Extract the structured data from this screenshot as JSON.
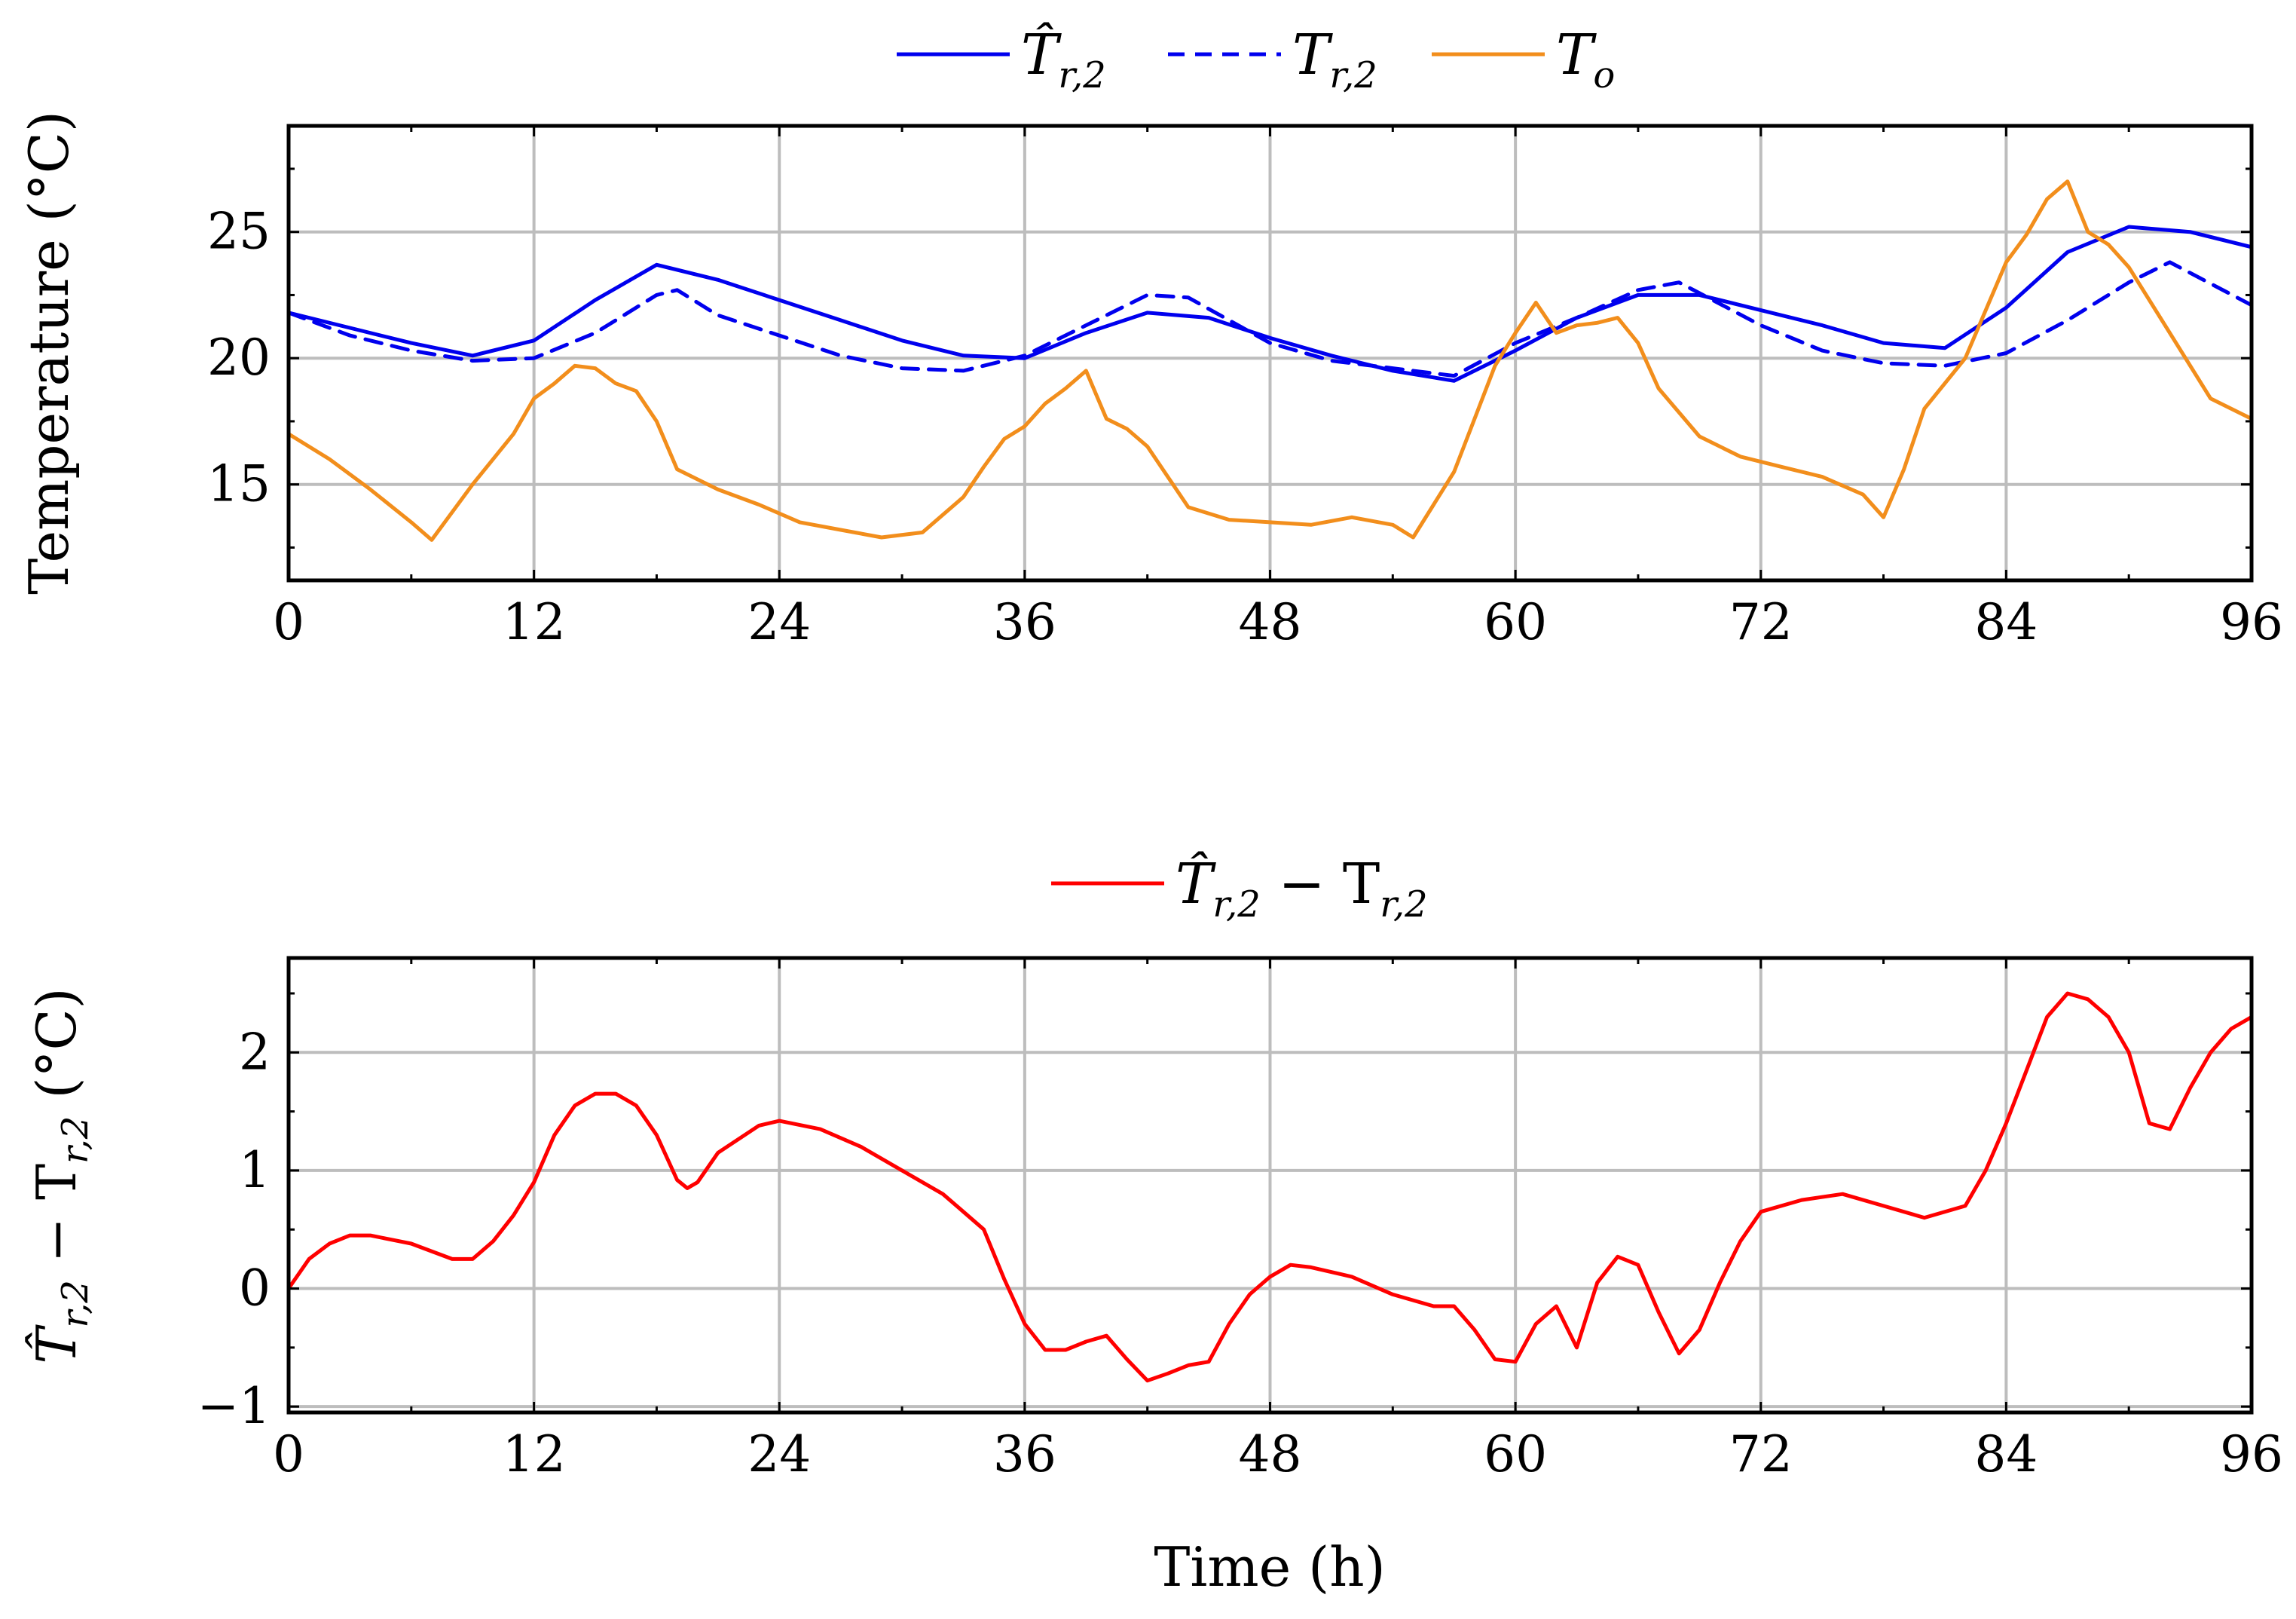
{
  "chart_data": [
    {
      "type": "line",
      "title": "",
      "xlabel": "",
      "ylabel": "Temperature (°C)",
      "xlim": [
        0,
        96
      ],
      "ylim": [
        11.2,
        29.2
      ],
      "xticks": [
        0,
        12,
        24,
        36,
        48,
        60,
        72,
        84,
        96
      ],
      "yticks": [
        15,
        20,
        25
      ],
      "xtick_labels": [
        "0",
        "12",
        "24",
        "36",
        "48",
        "60",
        "72",
        "84",
        "96"
      ],
      "ytick_labels": [
        "15",
        "20",
        "25"
      ],
      "grid": true,
      "legend_position": "top-center-outside",
      "series": [
        {
          "name": "T̂r,2",
          "legend_main": "T̂",
          "legend_sub": "r,2",
          "color": "#0000ee",
          "style": "solid",
          "x": [
            0,
            3,
            6,
            9,
            12,
            15,
            18,
            21,
            24,
            27,
            30,
            33,
            36,
            39,
            42,
            45,
            48,
            51,
            54,
            57,
            60,
            63,
            66,
            69,
            72,
            75,
            78,
            81,
            84,
            87,
            90,
            93,
            96
          ],
          "y": [
            21.8,
            21.2,
            20.6,
            20.1,
            20.7,
            22.3,
            23.7,
            23.1,
            22.3,
            21.5,
            20.7,
            20.1,
            20.0,
            21.0,
            21.8,
            21.6,
            20.8,
            20.1,
            19.5,
            19.1,
            20.3,
            21.6,
            22.5,
            22.5,
            21.9,
            21.3,
            20.6,
            20.4,
            22.0,
            24.2,
            25.2,
            25.0,
            24.4
          ]
        },
        {
          "name": "Tr,2",
          "legend_main": "T",
          "legend_sub": "r,2",
          "color": "#0000ee",
          "style": "dashed",
          "x": [
            0,
            3,
            6,
            9,
            12,
            15,
            18,
            19,
            21,
            24,
            27,
            30,
            33,
            36,
            39,
            42,
            44,
            48,
            51,
            54,
            57,
            60,
            63,
            66,
            68,
            72,
            75,
            78,
            81,
            84,
            87,
            90,
            92,
            96
          ],
          "y": [
            21.8,
            20.9,
            20.3,
            19.9,
            20.0,
            21.0,
            22.5,
            22.7,
            21.7,
            20.9,
            20.1,
            19.6,
            19.5,
            20.1,
            21.3,
            22.5,
            22.4,
            20.6,
            19.9,
            19.6,
            19.3,
            20.6,
            21.6,
            22.7,
            23.0,
            21.3,
            20.3,
            19.8,
            19.7,
            20.2,
            21.5,
            23.0,
            23.8,
            22.1
          ]
        },
        {
          "name": "To",
          "legend_main": "T",
          "legend_sub": "o",
          "color": "#f28e1c",
          "style": "solid",
          "x": [
            0,
            2,
            4,
            6,
            7,
            9,
            11,
            12,
            13,
            14,
            15,
            16,
            17,
            18,
            19,
            21,
            23,
            25,
            27,
            29,
            31,
            33,
            34,
            35,
            36,
            37,
            38,
            39,
            40,
            41,
            42,
            43,
            44,
            46,
            48,
            50,
            52,
            54,
            55,
            57,
            58,
            59,
            60,
            61,
            62,
            63,
            64,
            65,
            66,
            67,
            69,
            71,
            73,
            75,
            77,
            78,
            79,
            80,
            82,
            84,
            85,
            86,
            87,
            88,
            89,
            90,
            92,
            94,
            96
          ],
          "y": [
            17.0,
            16.0,
            14.8,
            13.5,
            12.8,
            15.0,
            17.0,
            18.4,
            19.0,
            19.7,
            19.6,
            19.0,
            18.7,
            17.5,
            15.6,
            14.8,
            14.2,
            13.5,
            13.2,
            12.9,
            13.1,
            14.5,
            15.7,
            16.8,
            17.3,
            18.2,
            18.8,
            19.5,
            17.6,
            17.2,
            16.5,
            15.3,
            14.1,
            13.6,
            13.5,
            13.4,
            13.7,
            13.4,
            12.9,
            15.5,
            17.6,
            19.7,
            21.0,
            22.2,
            21.0,
            21.3,
            21.4,
            21.6,
            20.6,
            18.8,
            16.9,
            16.1,
            15.7,
            15.3,
            14.6,
            13.7,
            15.6,
            18.0,
            20.0,
            23.8,
            24.9,
            26.3,
            27.0,
            25.0,
            24.5,
            23.6,
            21.0,
            18.4,
            17.6
          ]
        }
      ]
    },
    {
      "type": "line",
      "title": "",
      "xlabel": "Time (h)",
      "ylabel": "T̂r,2 − Tr,2 (°C)",
      "ylabel_main": "T̂",
      "ylabel_sub": "r,2",
      "ylabel_mid": " − T",
      "ylabel_sub2": "r,2",
      "ylabel_tail": " (°C)",
      "xlim": [
        0,
        96
      ],
      "ylim": [
        -1.05,
        2.8
      ],
      "xticks": [
        0,
        12,
        24,
        36,
        48,
        60,
        72,
        84,
        96
      ],
      "yticks": [
        -1,
        0,
        1,
        2
      ],
      "xtick_labels": [
        "0",
        "12",
        "24",
        "36",
        "48",
        "60",
        "72",
        "84",
        "96"
      ],
      "ytick_labels": [
        "−1",
        "0",
        "1",
        "2"
      ],
      "grid": true,
      "legend_position": "top-center-outside",
      "series": [
        {
          "name": "T̂r,2 − Tr,2",
          "legend_main": "T̂",
          "legend_sub": "r,2",
          "legend_mid": " − T",
          "legend_sub2": "r,2",
          "color": "#ff0000",
          "style": "solid",
          "x": [
            0,
            1,
            2,
            3,
            4,
            6,
            8,
            9,
            10,
            11,
            12,
            13,
            14,
            15,
            16,
            17,
            18,
            19,
            19.5,
            20,
            21,
            23,
            24,
            26,
            28,
            30,
            32,
            33,
            34,
            35,
            36,
            37,
            38,
            39,
            40,
            41,
            42,
            43,
            44,
            45,
            46,
            47,
            48,
            49,
            50,
            52,
            54,
            56,
            57,
            58,
            59,
            60,
            61,
            62,
            63,
            64,
            65,
            66,
            67,
            68,
            69,
            70,
            71,
            72,
            74,
            76,
            78,
            80,
            82,
            83,
            84,
            85,
            86,
            87,
            88,
            89,
            90,
            91,
            92,
            93,
            94,
            95,
            96
          ],
          "y": [
            0.0,
            0.25,
            0.38,
            0.45,
            0.45,
            0.38,
            0.25,
            0.25,
            0.4,
            0.62,
            0.9,
            1.3,
            1.55,
            1.65,
            1.65,
            1.55,
            1.3,
            0.92,
            0.85,
            0.9,
            1.15,
            1.38,
            1.42,
            1.35,
            1.2,
            1.0,
            0.8,
            0.65,
            0.5,
            0.08,
            -0.3,
            -0.52,
            -0.52,
            -0.45,
            -0.4,
            -0.6,
            -0.78,
            -0.72,
            -0.65,
            -0.62,
            -0.3,
            -0.05,
            0.1,
            0.2,
            0.18,
            0.1,
            -0.05,
            -0.15,
            -0.15,
            -0.35,
            -0.6,
            -0.62,
            -0.3,
            -0.15,
            -0.5,
            0.05,
            0.27,
            0.2,
            -0.2,
            -0.55,
            -0.35,
            0.05,
            0.4,
            0.65,
            0.75,
            0.8,
            0.7,
            0.6,
            0.7,
            1.0,
            1.4,
            1.85,
            2.3,
            2.5,
            2.45,
            2.3,
            2.0,
            1.4,
            1.35,
            1.7,
            2.0,
            2.2,
            2.3
          ]
        }
      ]
    }
  ]
}
